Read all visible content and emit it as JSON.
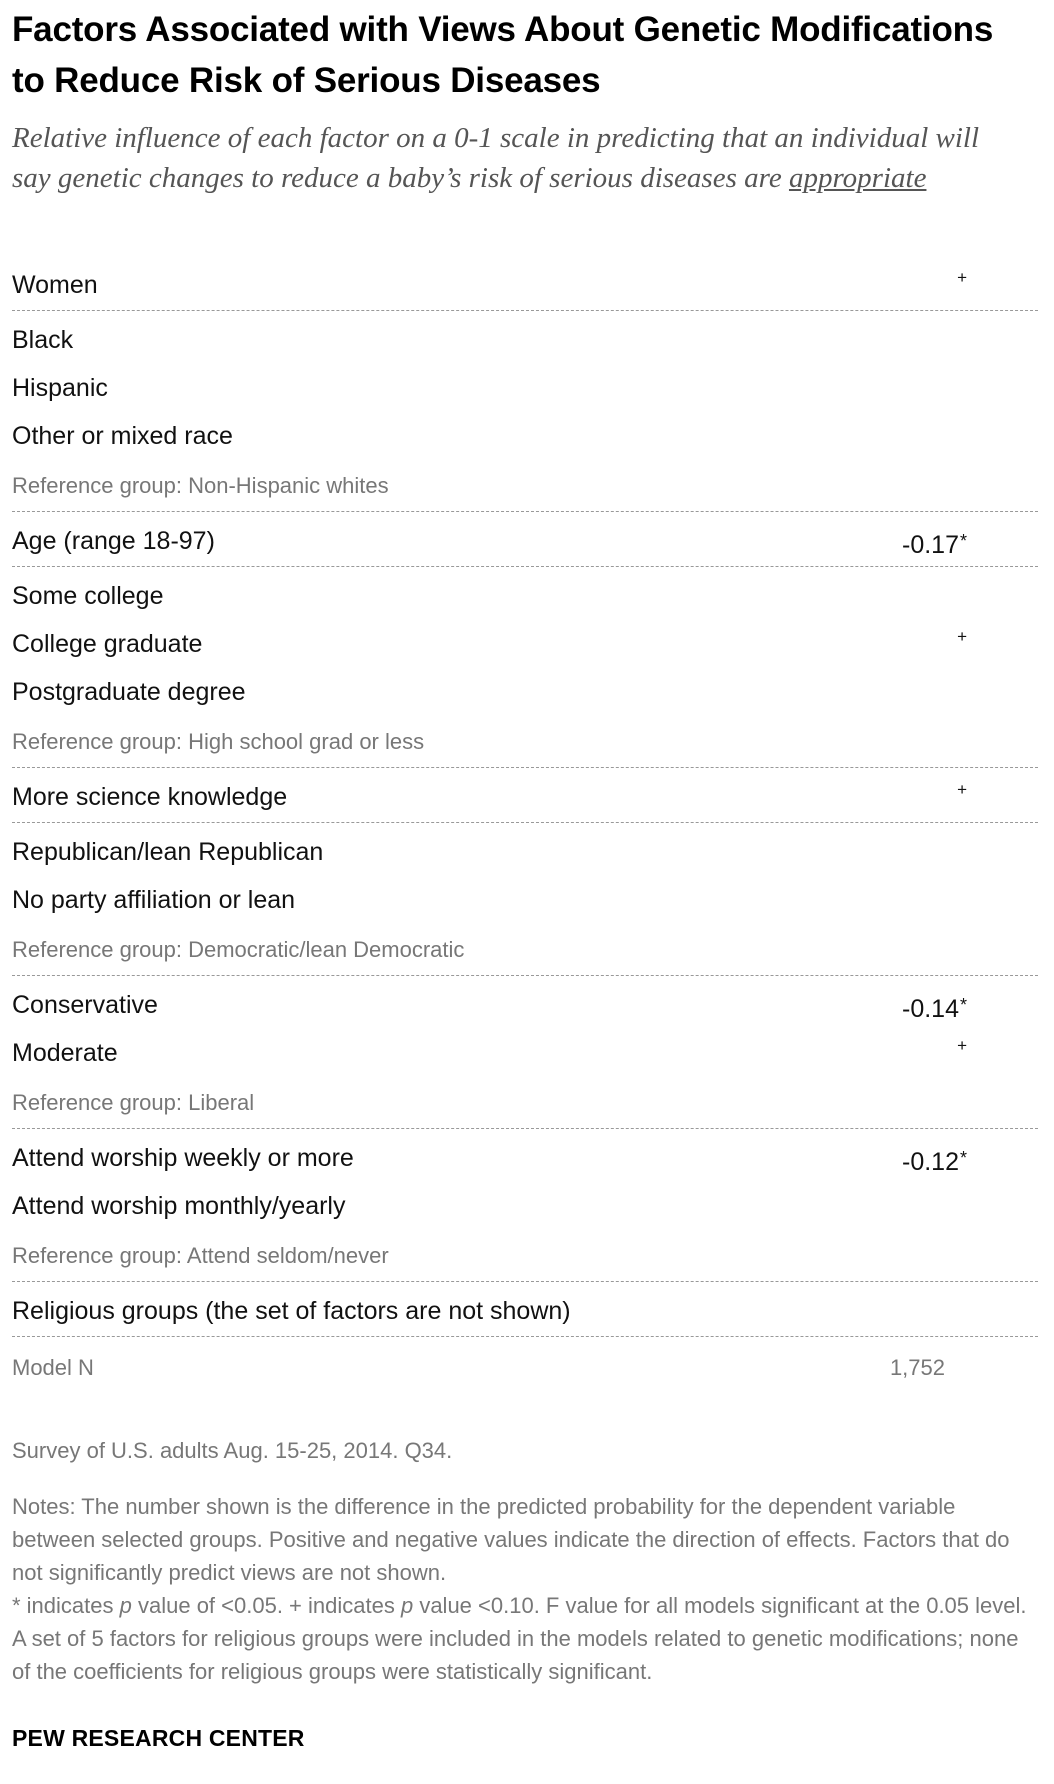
{
  "title": "Factors Associated with Views About Genetic Modifications to Reduce Risk of Serious Diseases",
  "subtitle_prefix": "Relative influence of each factor on a 0-1 scale in predicting that an individual will say genetic changes to reduce a baby’s risk of serious diseases are ",
  "subtitle_underlined": "appropriate",
  "rows": {
    "women": {
      "label": "Women",
      "mark": "+"
    },
    "black": {
      "label": "Black"
    },
    "hispanic": {
      "label": "Hispanic"
    },
    "other_race": {
      "label": "Other or mixed race"
    },
    "ref_race": {
      "label": "Reference group: Non-Hispanic whites"
    },
    "age": {
      "label": "Age (range 18-97)",
      "value": "-0.17",
      "star": "*"
    },
    "some_college": {
      "label": "Some college"
    },
    "college_grad": {
      "label": "College graduate",
      "mark": "+"
    },
    "postgrad": {
      "label": "Postgraduate degree"
    },
    "ref_edu": {
      "label": "Reference group: High school grad or less"
    },
    "science": {
      "label": "More science knowledge",
      "mark": "+"
    },
    "republican": {
      "label": "Republican/lean Republican"
    },
    "no_party": {
      "label": "No party affiliation or lean"
    },
    "ref_party": {
      "label": "Reference group: Democratic/lean Democratic"
    },
    "conservative": {
      "label": "Conservative",
      "value": "-0.14",
      "star": "*"
    },
    "moderate": {
      "label": "Moderate",
      "mark": "+"
    },
    "ref_ideology": {
      "label": "Reference group: Liberal"
    },
    "worship_weekly": {
      "label": "Attend worship weekly or more",
      "value": "-0.12",
      "star": "*"
    },
    "worship_monthly": {
      "label": "Attend worship monthly/yearly"
    },
    "ref_worship": {
      "label": "Reference group: Attend seldom/never"
    },
    "religious": {
      "label": "Religious groups (the set of factors are not shown)"
    },
    "model_n": {
      "label": "Model N",
      "value": "1,752"
    }
  },
  "source": "Survey of U.S. adults Aug. 15-25, 2014. Q34.",
  "notes": {
    "line1": "Notes: The number shown is the difference in the predicted probability for the dependent variable between selected groups. Positive and negative values indicate the direction of effects. Factors that do not significantly predict views are not shown.",
    "star_prefix": "* indicates ",
    "p": "p",
    "star_mid": " value of <0.05. + indicates ",
    "plus_mid": " value <0.10. F value for all models significant at the 0.05 level. A set of 5 factors for religious groups were included in the models related to genetic modifications; none of the coefficients for religious groups were statistically significant."
  },
  "brand": "PEW RESEARCH CENTER"
}
